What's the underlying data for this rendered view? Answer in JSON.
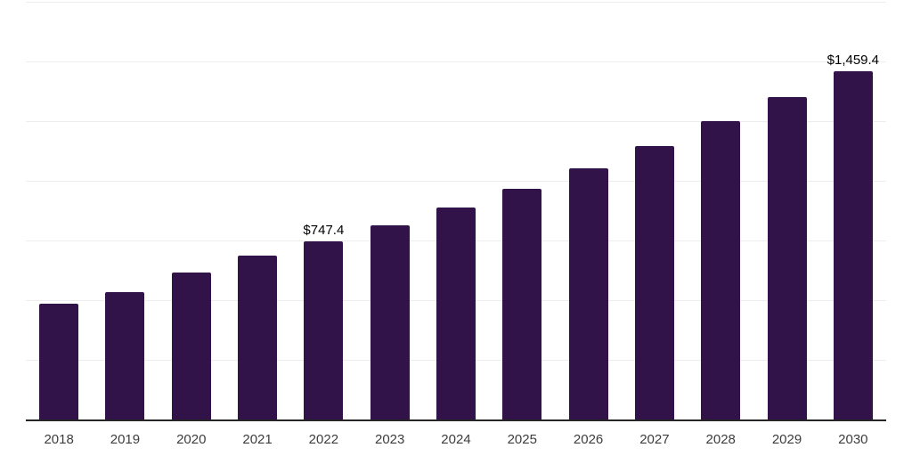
{
  "chart_data": {
    "type": "bar",
    "title": "",
    "xlabel": "",
    "ylabel": "",
    "categories": [
      "2018",
      "2019",
      "2020",
      "2021",
      "2022",
      "2023",
      "2024",
      "2025",
      "2026",
      "2027",
      "2028",
      "2029",
      "2030"
    ],
    "values": [
      485,
      532,
      614,
      686,
      747.4,
      815,
      888,
      967,
      1053,
      1146,
      1249,
      1352,
      1459.4
    ],
    "annotations": [
      {
        "category": "2022",
        "label": "$747.4"
      },
      {
        "category": "2030",
        "label": "$1,459.4"
      }
    ],
    "ylim": [
      0,
      1750
    ],
    "gridline_interval": 250,
    "grid": true,
    "legend": false,
    "colors": {
      "bar": "#321349",
      "gridline": "#ededed",
      "axis_line": "#262626",
      "tick_label": "#3d3d3d",
      "data_label": "#000000",
      "background": "#ffffff"
    }
  }
}
